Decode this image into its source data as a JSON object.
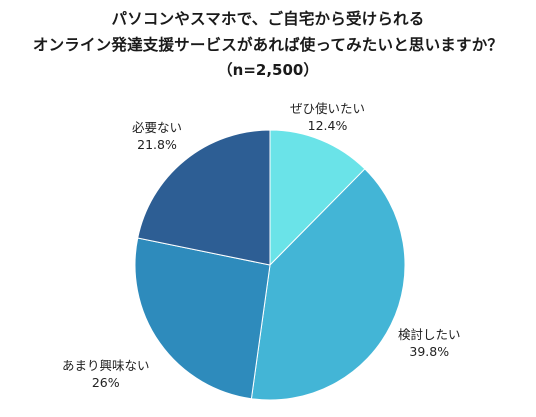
{
  "chart_data": {
    "type": "pie",
    "title_lines": [
      "パソコンやスマホで、ご自宅から受けられる",
      "オンライン発達支援サービスがあれば使ってみたいと思いますか？"
    ],
    "sample": "（n=2,500）",
    "start_angle_deg": 0,
    "direction": "clockwise",
    "slices": [
      {
        "label": "ぜひ使いたい",
        "value": 12.4,
        "value_text": "12.4%",
        "color": "#6ae3e8"
      },
      {
        "label": "検討したい",
        "value": 39.8,
        "value_text": "39.8%",
        "color": "#43b5d6"
      },
      {
        "label": "あまり興味ない",
        "value": 26,
        "value_text": "26%",
        "color": "#2e8bbc"
      },
      {
        "label": "必要ない",
        "value": 21.8,
        "value_text": "21.8%",
        "color": "#2d5e94"
      }
    ]
  }
}
